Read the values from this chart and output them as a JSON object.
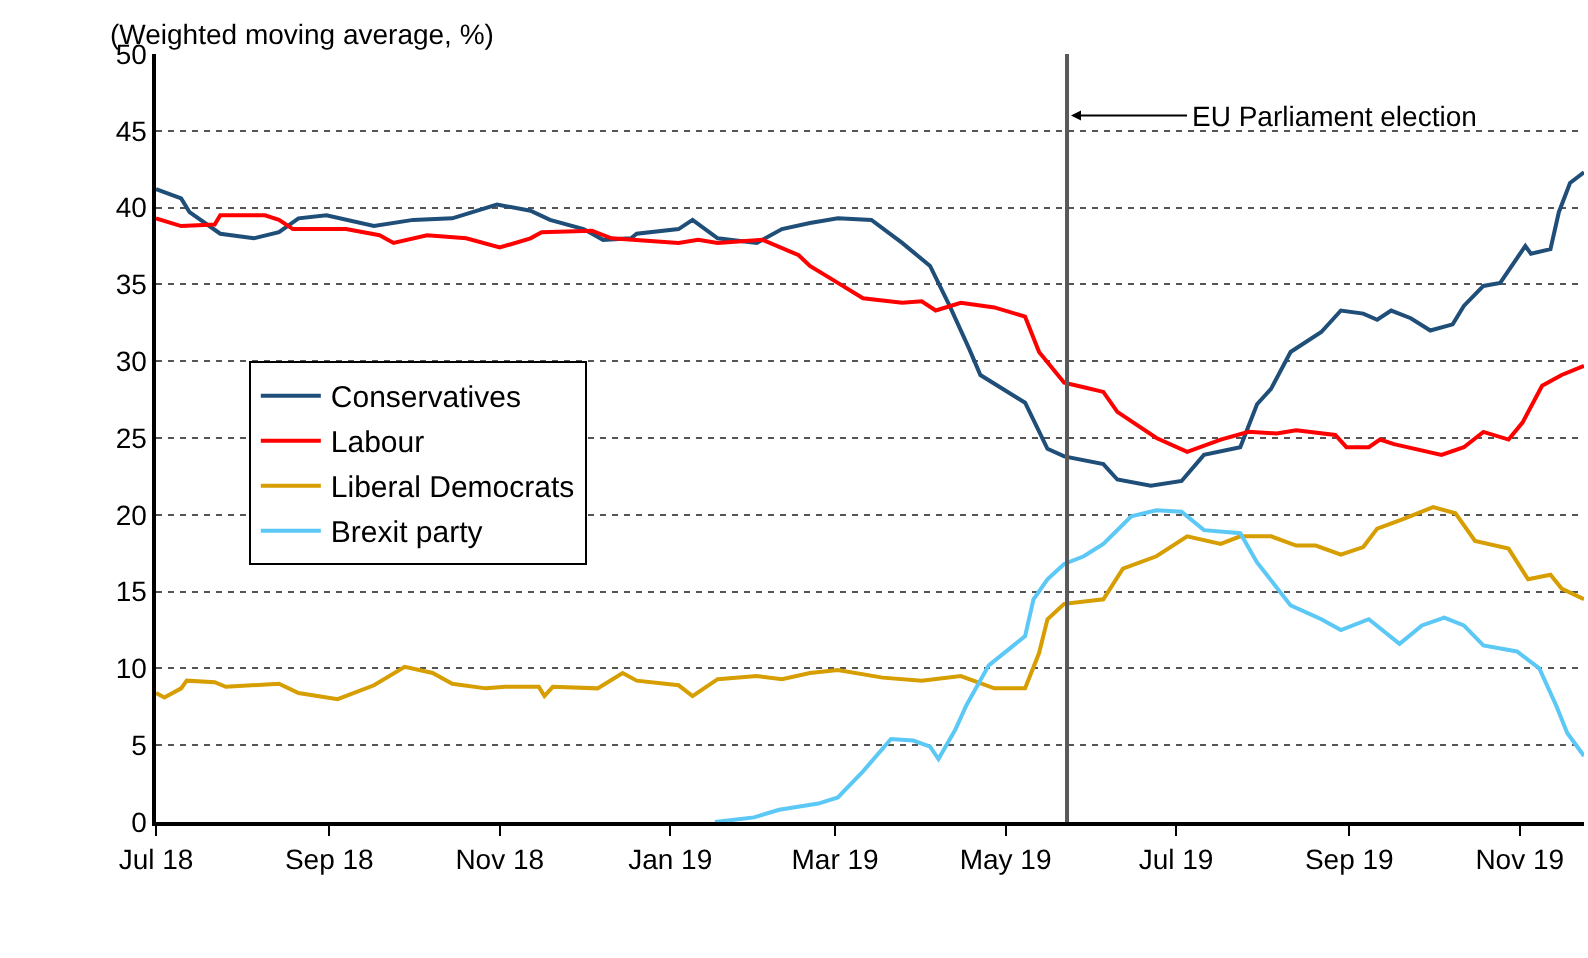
{
  "chart_data": {
    "type": "line",
    "ylabel": "(Weighted moving average, %)",
    "xlim": [
      "2018-07-01",
      "2019-11-24"
    ],
    "ylim": [
      0,
      50
    ],
    "yticks": [
      0,
      5,
      10,
      15,
      20,
      25,
      30,
      35,
      40,
      45,
      50
    ],
    "xticks": [
      {
        "value": "2018-07-01",
        "label": "Jul 18"
      },
      {
        "value": "2018-09-01",
        "label": "Sep 18"
      },
      {
        "value": "2018-11-01",
        "label": "Nov 18"
      },
      {
        "value": "2019-01-01",
        "label": "Jan 19"
      },
      {
        "value": "2019-03-01",
        "label": "Mar 19"
      },
      {
        "value": "2019-05-01",
        "label": "May 19"
      },
      {
        "value": "2019-07-01",
        "label": "Jul 19"
      },
      {
        "value": "2019-09-01",
        "label": "Sep 19"
      },
      {
        "value": "2019-11-01",
        "label": "Nov 19"
      }
    ],
    "grid": "y",
    "legend": "left",
    "marker": "none",
    "line_style": "solid",
    "ref_lines": [
      {
        "axis": "x",
        "value": "2019-05-23",
        "label": "EU Parliament election",
        "color": "#595959"
      }
    ],
    "series": [
      {
        "name": "Conservatives",
        "color": "#1f4e79",
        "x": [
          "2018-07-01",
          "2018-07-10",
          "2018-07-13",
          "2018-07-24",
          "2018-08-05",
          "2018-08-14",
          "2018-08-21",
          "2018-08-31",
          "2018-09-17",
          "2018-10-01",
          "2018-10-15",
          "2018-10-31",
          "2018-11-12",
          "2018-11-19",
          "2018-12-01",
          "2018-12-08",
          "2018-12-18",
          "2018-12-20",
          "2019-01-04",
          "2019-01-09",
          "2019-01-18",
          "2019-02-01",
          "2019-02-10",
          "2019-02-20",
          "2019-03-02",
          "2019-03-14",
          "2019-03-25",
          "2019-04-04",
          "2019-04-11",
          "2019-04-18",
          "2019-04-22",
          "2019-05-08",
          "2019-05-16",
          "2019-05-22",
          "2019-06-05",
          "2019-06-10",
          "2019-06-22",
          "2019-07-03",
          "2019-07-11",
          "2019-07-24",
          "2019-07-30",
          "2019-08-04",
          "2019-08-11",
          "2019-08-22",
          "2019-08-29",
          "2019-09-06",
          "2019-09-11",
          "2019-09-16",
          "2019-09-23",
          "2019-09-30",
          "2019-10-08",
          "2019-10-12",
          "2019-10-19",
          "2019-10-25",
          "2019-11-03",
          "2019-11-05",
          "2019-11-12",
          "2019-11-15",
          "2019-11-19",
          "2019-11-24"
        ],
        "values": [
          41.2,
          40.6,
          39.7,
          38.3,
          38.0,
          38.4,
          39.3,
          39.5,
          38.8,
          39.2,
          39.3,
          40.2,
          39.8,
          39.2,
          38.6,
          37.9,
          38.0,
          38.3,
          38.6,
          39.2,
          38.0,
          37.7,
          38.6,
          39.0,
          39.3,
          39.2,
          37.7,
          36.2,
          33.6,
          30.8,
          29.1,
          27.3,
          24.3,
          23.8,
          23.3,
          22.3,
          21.9,
          22.2,
          23.9,
          24.4,
          27.2,
          28.2,
          30.6,
          31.9,
          33.3,
          33.1,
          32.7,
          33.3,
          32.8,
          32.0,
          32.4,
          33.6,
          34.9,
          35.1,
          37.5,
          37.0,
          37.3,
          39.7,
          41.6,
          42.3
        ]
      },
      {
        "name": "Labour",
        "color": "#ff0000",
        "x": [
          "2018-07-01",
          "2018-07-10",
          "2018-07-22",
          "2018-07-24",
          "2018-08-09",
          "2018-08-14",
          "2018-08-19",
          "2018-09-07",
          "2018-09-19",
          "2018-09-24",
          "2018-10-06",
          "2018-10-20",
          "2018-11-01",
          "2018-11-12",
          "2018-11-16",
          "2018-12-04",
          "2018-12-11",
          "2019-01-04",
          "2019-01-11",
          "2019-01-18",
          "2019-02-03",
          "2019-02-16",
          "2019-02-20",
          "2019-03-02",
          "2019-03-11",
          "2019-03-25",
          "2019-04-01",
          "2019-04-06",
          "2019-04-15",
          "2019-04-27",
          "2019-05-08",
          "2019-05-13",
          "2019-05-22",
          "2019-05-29",
          "2019-06-05",
          "2019-06-10",
          "2019-06-24",
          "2019-07-05",
          "2019-07-17",
          "2019-07-27",
          "2019-08-06",
          "2019-08-13",
          "2019-08-27",
          "2019-08-31",
          "2019-09-08",
          "2019-09-12",
          "2019-09-17",
          "2019-10-04",
          "2019-10-12",
          "2019-10-19",
          "2019-10-28",
          "2019-11-02",
          "2019-11-09",
          "2019-11-16",
          "2019-11-24"
        ],
        "values": [
          39.3,
          38.8,
          38.9,
          39.5,
          39.5,
          39.2,
          38.6,
          38.6,
          38.2,
          37.7,
          38.2,
          38.0,
          37.4,
          38.0,
          38.4,
          38.5,
          38.0,
          37.7,
          37.9,
          37.7,
          37.9,
          36.9,
          36.2,
          35.1,
          34.1,
          33.8,
          33.9,
          33.3,
          33.8,
          33.5,
          32.9,
          30.6,
          28.6,
          28.3,
          28.0,
          26.7,
          25.0,
          24.1,
          24.9,
          25.4,
          25.3,
          25.5,
          25.2,
          24.4,
          24.4,
          24.9,
          24.6,
          23.9,
          24.4,
          25.4,
          24.9,
          26.0,
          28.4,
          29.1,
          29.7
        ]
      },
      {
        "name": "Liberal Democrats",
        "color": "#d69e00",
        "x": [
          "2018-07-01",
          "2018-07-04",
          "2018-07-10",
          "2018-07-12",
          "2018-07-22",
          "2018-07-26",
          "2018-08-14",
          "2018-08-21",
          "2018-09-04",
          "2018-09-17",
          "2018-09-28",
          "2018-10-08",
          "2018-10-15",
          "2018-10-27",
          "2018-11-03",
          "2018-11-15",
          "2018-11-17",
          "2018-11-20",
          "2018-12-06",
          "2018-12-15",
          "2018-12-20",
          "2019-01-04",
          "2019-01-09",
          "2019-01-18",
          "2019-02-01",
          "2019-02-10",
          "2019-02-20",
          "2019-03-02",
          "2019-03-18",
          "2019-04-01",
          "2019-04-15",
          "2019-04-27",
          "2019-05-08",
          "2019-05-13",
          "2019-05-16",
          "2019-05-22",
          "2019-06-05",
          "2019-06-12",
          "2019-06-24",
          "2019-07-05",
          "2019-07-17",
          "2019-07-24",
          "2019-08-04",
          "2019-08-13",
          "2019-08-20",
          "2019-08-29",
          "2019-09-06",
          "2019-09-11",
          "2019-09-20",
          "2019-10-01",
          "2019-10-09",
          "2019-10-16",
          "2019-10-28",
          "2019-11-04",
          "2019-11-12",
          "2019-11-16",
          "2019-11-24"
        ],
        "values": [
          8.4,
          8.1,
          8.7,
          9.2,
          9.1,
          8.8,
          9.0,
          8.4,
          8.0,
          8.9,
          10.1,
          9.7,
          9.0,
          8.7,
          8.8,
          8.8,
          8.2,
          8.8,
          8.7,
          9.7,
          9.2,
          8.9,
          8.2,
          9.3,
          9.5,
          9.3,
          9.7,
          9.9,
          9.4,
          9.2,
          9.5,
          8.7,
          8.7,
          11.0,
          13.2,
          14.2,
          14.5,
          16.5,
          17.3,
          18.6,
          18.1,
          18.6,
          18.6,
          18.0,
          18.0,
          17.4,
          17.9,
          19.1,
          19.7,
          20.5,
          20.1,
          18.3,
          17.8,
          15.8,
          16.1,
          15.2,
          14.5
        ]
      },
      {
        "name": "Brexit party",
        "color": "#5bc8f5",
        "x": [
          "2019-01-17",
          "2019-01-31",
          "2019-02-09",
          "2019-02-23",
          "2019-03-02",
          "2019-03-11",
          "2019-03-21",
          "2019-03-29",
          "2019-04-04",
          "2019-04-07",
          "2019-04-13",
          "2019-04-17",
          "2019-04-25",
          "2019-05-08",
          "2019-05-11",
          "2019-05-16",
          "2019-05-22",
          "2019-05-29",
          "2019-06-05",
          "2019-06-15",
          "2019-06-24",
          "2019-07-03",
          "2019-07-11",
          "2019-07-24",
          "2019-07-30",
          "2019-08-11",
          "2019-08-22",
          "2019-08-29",
          "2019-09-08",
          "2019-09-19",
          "2019-09-27",
          "2019-10-05",
          "2019-10-12",
          "2019-10-19",
          "2019-10-31",
          "2019-11-08",
          "2019-11-14",
          "2019-11-18",
          "2019-11-24"
        ],
        "values": [
          0.0,
          0.3,
          0.8,
          1.2,
          1.6,
          3.3,
          5.4,
          5.3,
          4.9,
          4.1,
          6.0,
          7.6,
          10.2,
          12.1,
          14.5,
          15.8,
          16.8,
          17.3,
          18.1,
          19.9,
          20.3,
          20.2,
          19.0,
          18.8,
          16.9,
          14.1,
          13.2,
          12.5,
          13.2,
          11.6,
          12.8,
          13.3,
          12.8,
          11.5,
          11.1,
          10.0,
          7.6,
          5.8,
          4.3
        ]
      }
    ]
  }
}
